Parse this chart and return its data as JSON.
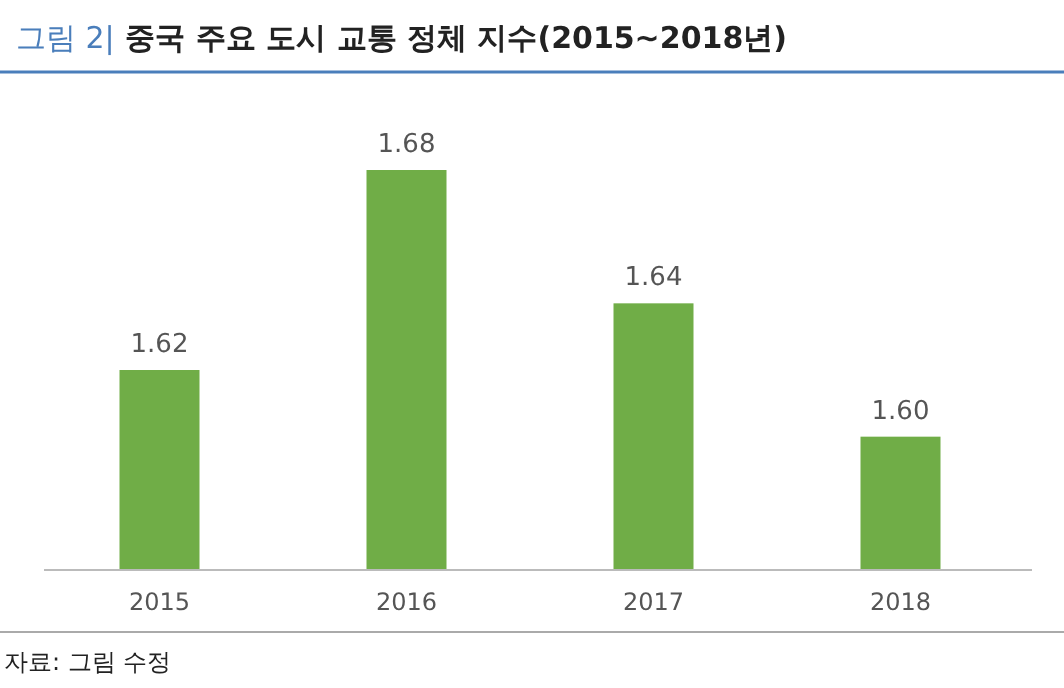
{
  "chart_data": {
    "type": "bar",
    "title": "그림 2| 중국 주요 도시 교통 정체 지수(2015~2018년)",
    "categories": [
      "2015",
      "2016",
      "2017",
      "2018"
    ],
    "values": [
      1.62,
      1.68,
      1.64,
      1.6
    ],
    "value_labels": [
      "1.62",
      "1.68",
      "1.64",
      "1.60"
    ],
    "color": "#70ad47",
    "ylim": [
      1.56,
      1.68
    ],
    "annotations": [
      "자료: 그림 수정"
    ]
  }
}
